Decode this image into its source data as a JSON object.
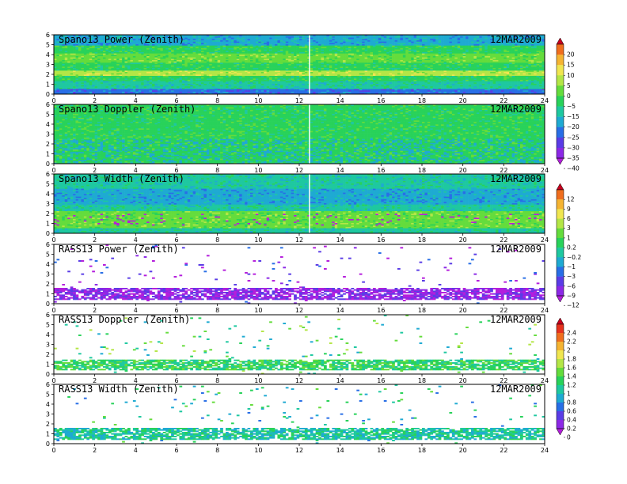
{
  "chart_data": [
    {
      "type": "heatmap",
      "title": "Spano13 Power (Zenith)",
      "date": "12MAR2009",
      "xlim": [
        0,
        24
      ],
      "ylim": [
        0,
        6
      ],
      "x_ticks": [
        "0",
        "2",
        "4",
        "6",
        "8",
        "10",
        "12",
        "14",
        "16",
        "18",
        "20",
        "22",
        "24"
      ],
      "y_ticks": [
        "0",
        "1",
        "2",
        "3",
        "4",
        "5",
        "6"
      ],
      "colorbar_group": 0,
      "pattern": "bands",
      "bands": [
        {
          "ymin": 0.0,
          "ymax": 0.5,
          "level": 3
        },
        {
          "ymin": 0.5,
          "ymax": 1.3,
          "level": 5
        },
        {
          "ymin": 1.3,
          "ymax": 1.8,
          "level": 6
        },
        {
          "ymin": 1.8,
          "ymax": 2.4,
          "level": 8
        },
        {
          "ymin": 2.4,
          "ymax": 3.2,
          "level": 6
        },
        {
          "ymin": 3.2,
          "ymax": 4.1,
          "level": 7
        },
        {
          "ymin": 4.1,
          "ymax": 5.0,
          "level": 6
        },
        {
          "ymin": 5.0,
          "ymax": 6.0,
          "level": 4
        }
      ]
    },
    {
      "type": "heatmap",
      "title": "Spano13 Doppler (Zenith)",
      "date": "12MAR2009",
      "xlim": [
        0,
        24
      ],
      "ylim": [
        0,
        6
      ],
      "x_ticks": [
        "0",
        "2",
        "4",
        "6",
        "8",
        "10",
        "12",
        "14",
        "16",
        "18",
        "20",
        "22",
        "24"
      ],
      "y_ticks": [
        "0",
        "1",
        "2",
        "3",
        "4",
        "5",
        "6"
      ],
      "colorbar_group": 0,
      "pattern": "bands",
      "bands": [
        {
          "ymin": 0.0,
          "ymax": 2.6,
          "level": 6
        },
        {
          "ymin": 2.6,
          "ymax": 6.0,
          "level": 6
        }
      ]
    },
    {
      "type": "heatmap",
      "title": "Spano13 Width (Zenith)",
      "date": "12MAR2009",
      "xlim": [
        0,
        24
      ],
      "ylim": [
        0,
        6
      ],
      "x_ticks": [
        "0",
        "2",
        "4",
        "6",
        "8",
        "10",
        "12",
        "14",
        "16",
        "18",
        "20",
        "22",
        "24"
      ],
      "y_ticks": [
        "0",
        "1",
        "2",
        "3",
        "4",
        "5",
        "6"
      ],
      "colorbar_group": 1,
      "pattern": "bands",
      "bands": [
        {
          "ymin": 0.0,
          "ymax": 0.5,
          "level": 5
        },
        {
          "ymin": 0.5,
          "ymax": 2.2,
          "level": 7
        },
        {
          "ymin": 2.2,
          "ymax": 3.0,
          "level": 5
        },
        {
          "ymin": 3.0,
          "ymax": 4.5,
          "level": 4
        },
        {
          "ymin": 4.5,
          "ymax": 6.0,
          "level": 5
        }
      ]
    },
    {
      "type": "heatmap",
      "title": "RASS13 Power (Zenith)",
      "date": "12MAR2009",
      "xlim": [
        0,
        24
      ],
      "ylim": [
        0,
        6
      ],
      "x_ticks": [
        "0",
        "2",
        "4",
        "6",
        "8",
        "10",
        "12",
        "14",
        "16",
        "18",
        "20",
        "22",
        "24"
      ],
      "y_ticks": [
        "0",
        "1",
        "2",
        "3",
        "4",
        "5",
        "6"
      ],
      "colorbar_group": 1,
      "pattern": "sparse",
      "dense_range": [
        0.4,
        1.6
      ],
      "dense_level": 1
    },
    {
      "type": "heatmap",
      "title": "RASS13 Doppler (Zenith)",
      "date": "12MAR2009",
      "xlim": [
        0,
        24
      ],
      "ylim": [
        0,
        6
      ],
      "x_ticks": [
        "0",
        "2",
        "4",
        "6",
        "8",
        "10",
        "12",
        "14",
        "16",
        "18",
        "20",
        "22",
        "24"
      ],
      "y_ticks": [
        "0",
        "1",
        "2",
        "3",
        "4",
        "5",
        "6"
      ],
      "colorbar_group": 2,
      "pattern": "sparse",
      "dense_range": [
        0.4,
        1.5
      ],
      "dense_level": 6
    },
    {
      "type": "heatmap",
      "title": "RASS13 Width (Zenith)",
      "date": "12MAR2009",
      "xlim": [
        0,
        24
      ],
      "ylim": [
        0,
        6
      ],
      "x_ticks": [
        "0",
        "2",
        "4",
        "6",
        "8",
        "10",
        "12",
        "14",
        "16",
        "18",
        "20",
        "22",
        "24"
      ],
      "y_ticks": [
        "0",
        "1",
        "2",
        "3",
        "4",
        "5",
        "6"
      ],
      "colorbar_group": 2,
      "pattern": "sparse",
      "dense_range": [
        0.4,
        1.6
      ],
      "dense_level": 5
    }
  ],
  "colorbars": [
    {
      "labels": [
        "20",
        "15",
        "10",
        "5",
        "0",
        "−5",
        "−15",
        "−20",
        "−25",
        "−30",
        "−35",
        "−40"
      ],
      "colors": [
        "#c8001e",
        "#f06e1e",
        "#f5b432",
        "#f0e650",
        "#b4e646",
        "#64dc3c",
        "#28d25a",
        "#1ec8a0",
        "#1eaad2",
        "#286ee6",
        "#5a3ce6",
        "#8c28e6",
        "#b41edc"
      ]
    },
    {
      "labels": [
        "12",
        "9",
        "6",
        "3",
        "1",
        "0.2",
        "−0.2",
        "−1",
        "−3",
        "−6",
        "−9",
        "−12"
      ],
      "colors": [
        "#c8001e",
        "#f06e1e",
        "#f5b432",
        "#f0e650",
        "#b4e646",
        "#64dc3c",
        "#28d25a",
        "#1ec8a0",
        "#1eaad2",
        "#286ee6",
        "#5a3ce6",
        "#8c28e6",
        "#b41edc"
      ]
    },
    {
      "labels": [
        "2.4",
        "2.2",
        "2",
        "1.8",
        "1.6",
        "1.4",
        "1.2",
        "1",
        "0.8",
        "0.6",
        "0.4",
        "0.2",
        "0"
      ],
      "colors": [
        "#c8001e",
        "#e6321e",
        "#f06e1e",
        "#f5b432",
        "#f0e650",
        "#b4e646",
        "#64dc3c",
        "#28d25a",
        "#1ec8a0",
        "#1eaad2",
        "#286ee6",
        "#5a3ce6",
        "#8c28e6",
        "#b41edc"
      ]
    }
  ]
}
